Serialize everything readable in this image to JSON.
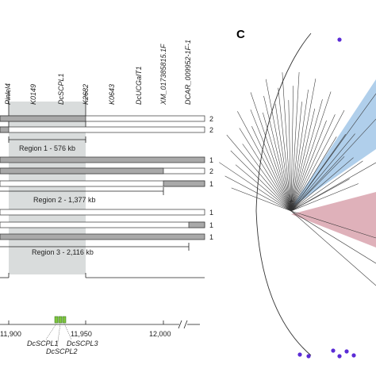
{
  "panel_c_label": "C",
  "markers": [
    {
      "name": "Pinlel4"
    },
    {
      "name": "K0149"
    },
    {
      "name": "DcSCPL1"
    },
    {
      "name": "K2682"
    },
    {
      "name": "K0643"
    },
    {
      "name": "DcUCGalT1"
    },
    {
      "name": "XM_017385815.1F"
    },
    {
      "name": "DCAR_009952-1F-1"
    }
  ],
  "tracks": [
    {
      "count": "2"
    },
    {
      "count": "2"
    },
    {
      "count": "1"
    },
    {
      "count": "2"
    },
    {
      "count": "1"
    },
    {
      "count": "1"
    },
    {
      "count": "1"
    },
    {
      "count": "1"
    }
  ],
  "regions": [
    {
      "label": "Region 1 - 576 kb"
    },
    {
      "label": "Region 2 - 1,377 kb"
    },
    {
      "label": "Region 3 - 2,116 kb"
    }
  ],
  "axis": {
    "ticks": [
      "11,900",
      "11,950",
      "12,000"
    ]
  },
  "genes": [
    "DcSCPL1",
    "DcSCPL2",
    "DcSCPL3"
  ],
  "tree": {
    "colors": {
      "blue_clade": "#9cc3e6",
      "red_clade": "#d9a3ae",
      "dots": "#5b2bd6"
    }
  }
}
